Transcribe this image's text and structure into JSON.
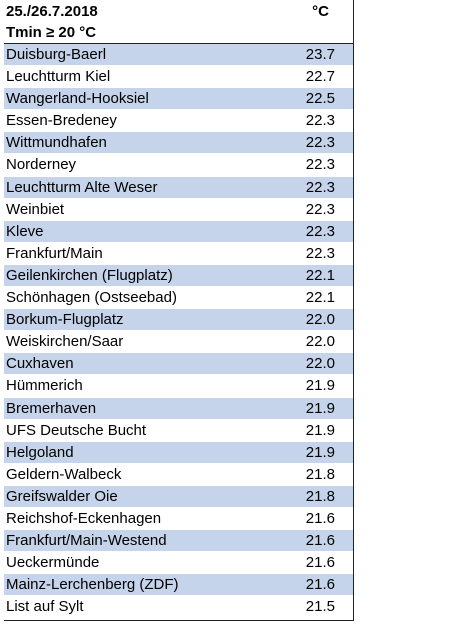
{
  "header": {
    "date": "25./26.7.2018",
    "unit": "°C",
    "condition": "Tmin ≥ 20 °C"
  },
  "rows": [
    {
      "station": "Duisburg-Baerl",
      "value": "23.7"
    },
    {
      "station": "Leuchtturm Kiel",
      "value": "22.7"
    },
    {
      "station": "Wangerland-Hooksiel",
      "value": "22.5"
    },
    {
      "station": "Essen-Bredeney",
      "value": "22.3"
    },
    {
      "station": "Wittmundhafen",
      "value": "22.3"
    },
    {
      "station": "Norderney",
      "value": "22.3"
    },
    {
      "station": "Leuchtturm Alte Weser",
      "value": "22.3"
    },
    {
      "station": "Weinbiet",
      "value": "22.3"
    },
    {
      "station": "Kleve",
      "value": "22.3"
    },
    {
      "station": "Frankfurt/Main",
      "value": "22.3"
    },
    {
      "station": "Geilenkirchen (Flugplatz)",
      "value": "22.1"
    },
    {
      "station": "Schönhagen (Ostseebad)",
      "value": "22.1"
    },
    {
      "station": "Borkum-Flugplatz",
      "value": "22.0"
    },
    {
      "station": "Weiskirchen/Saar",
      "value": "22.0"
    },
    {
      "station": "Cuxhaven",
      "value": "22.0"
    },
    {
      "station": "Hümmerich",
      "value": "21.9"
    },
    {
      "station": "Bremerhaven",
      "value": "21.9"
    },
    {
      "station": "UFS Deutsche Bucht",
      "value": "21.9"
    },
    {
      "station": "Helgoland",
      "value": "21.9"
    },
    {
      "station": "Geldern-Walbeck",
      "value": "21.8"
    },
    {
      "station": "Greifswalder Oie",
      "value": "21.8"
    },
    {
      "station": "Reichshof-Eckenhagen",
      "value": "21.6"
    },
    {
      "station": "Frankfurt/Main-Westend",
      "value": "21.6"
    },
    {
      "station": "Ueckermünde",
      "value": "21.6"
    },
    {
      "station": "Mainz-Lerchenberg (ZDF)",
      "value": "21.6"
    },
    {
      "station": "List auf Sylt",
      "value": "21.5"
    }
  ]
}
